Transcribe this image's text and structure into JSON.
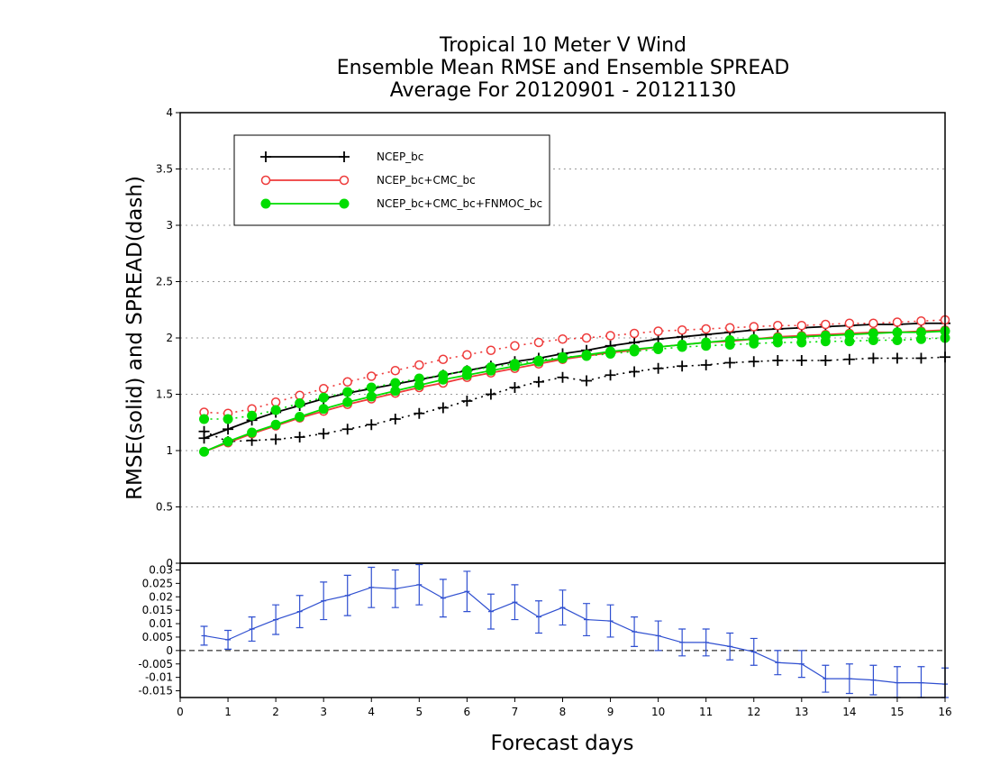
{
  "title": {
    "line1": "Tropical 10 Meter V Wind",
    "line2": "Ensemble Mean RMSE and Ensemble SPREAD",
    "line3": "Average For 20120901 - 20121130"
  },
  "chart_data": [
    {
      "type": "line",
      "panel": "top",
      "ylabel": "RMSE(solid) and SPREAD(dash)",
      "ylim": [
        0,
        4
      ],
      "yticks": [
        "0",
        "0.5",
        "1",
        "1.5",
        "2",
        "2.5",
        "3",
        "3.5",
        "4"
      ],
      "xlim": [
        0,
        16
      ],
      "grid": "horizontal dotted",
      "legend_position": "top-left",
      "x": [
        0.5,
        1,
        1.5,
        2,
        2.5,
        3,
        3.5,
        4,
        4.5,
        5,
        5.5,
        6,
        6.5,
        7,
        7.5,
        8,
        8.5,
        9,
        9.5,
        10,
        10.5,
        11,
        11.5,
        12,
        12.5,
        13,
        13.5,
        14,
        14.5,
        15,
        15.5,
        16
      ],
      "series": [
        {
          "name": "NCEP_bc",
          "color": "#000000",
          "marker": "plus",
          "rmse": [
            1.11,
            1.19,
            1.27,
            1.34,
            1.4,
            1.46,
            1.51,
            1.55,
            1.59,
            1.63,
            1.67,
            1.71,
            1.75,
            1.79,
            1.82,
            1.86,
            1.89,
            1.93,
            1.96,
            1.99,
            2.01,
            2.03,
            2.05,
            2.07,
            2.08,
            2.09,
            2.1,
            2.11,
            2.12,
            2.12,
            2.13,
            2.13
          ],
          "spread": [
            1.17,
            1.08,
            1.09,
            1.1,
            1.12,
            1.15,
            1.19,
            1.23,
            1.28,
            1.33,
            1.38,
            1.44,
            1.5,
            1.56,
            1.61,
            1.65,
            1.62,
            1.67,
            1.7,
            1.73,
            1.75,
            1.76,
            1.78,
            1.79,
            1.8,
            1.8,
            1.8,
            1.81,
            1.82,
            1.82,
            1.82,
            1.83
          ]
        },
        {
          "name": "NCEP_bc+CMC_bc",
          "color": "#ee3a3a",
          "marker": "open-circle",
          "rmse": [
            0.99,
            1.07,
            1.15,
            1.22,
            1.29,
            1.35,
            1.41,
            1.46,
            1.51,
            1.56,
            1.6,
            1.65,
            1.69,
            1.73,
            1.77,
            1.81,
            1.84,
            1.87,
            1.89,
            1.92,
            1.94,
            1.96,
            1.97,
            1.99,
            2.01,
            2.02,
            2.03,
            2.04,
            2.05,
            2.05,
            2.06,
            2.07
          ],
          "spread": [
            1.34,
            1.33,
            1.37,
            1.43,
            1.49,
            1.55,
            1.61,
            1.66,
            1.71,
            1.76,
            1.81,
            1.85,
            1.89,
            1.93,
            1.96,
            1.99,
            2.0,
            2.02,
            2.04,
            2.06,
            2.07,
            2.08,
            2.09,
            2.1,
            2.11,
            2.11,
            2.12,
            2.13,
            2.13,
            2.14,
            2.15,
            2.16
          ]
        },
        {
          "name": "NCEP_bc+CMC_bc+FNMOC_bc",
          "color": "#00dd00",
          "marker": "filled-circle",
          "rmse": [
            0.99,
            1.08,
            1.16,
            1.23,
            1.3,
            1.37,
            1.43,
            1.48,
            1.53,
            1.58,
            1.63,
            1.67,
            1.71,
            1.75,
            1.79,
            1.82,
            1.85,
            1.88,
            1.9,
            1.92,
            1.94,
            1.96,
            1.98,
            1.99,
            2.0,
            2.01,
            2.02,
            2.03,
            2.04,
            2.05,
            2.05,
            2.06
          ],
          "spread": [
            1.28,
            1.28,
            1.31,
            1.36,
            1.42,
            1.47,
            1.52,
            1.56,
            1.6,
            1.64,
            1.67,
            1.71,
            1.74,
            1.77,
            1.8,
            1.83,
            1.84,
            1.86,
            1.88,
            1.9,
            1.92,
            1.93,
            1.94,
            1.95,
            1.96,
            1.96,
            1.97,
            1.97,
            1.98,
            1.98,
            1.99,
            2.0
          ]
        }
      ]
    },
    {
      "type": "line",
      "panel": "bottom",
      "xlabel": "Forecast days",
      "ylim": [
        -0.0175,
        0.0325
      ],
      "yticks": [
        "-0.015",
        "-0.01",
        "-0.005",
        "0",
        "0.005",
        "0.01",
        "0.015",
        "0.02",
        "0.025",
        "0.03"
      ],
      "xticks": [
        "0",
        "1",
        "2",
        "3",
        "4",
        "5",
        "6",
        "7",
        "8",
        "9",
        "10",
        "11",
        "12",
        "13",
        "14",
        "15",
        "16"
      ],
      "xlim": [
        0,
        16
      ],
      "zero_line": "dashed",
      "series": [
        {
          "color": "#2f4fd0",
          "error_bars": true,
          "x": [
            0.5,
            1,
            1.5,
            2,
            2.5,
            3,
            3.5,
            4,
            4.5,
            5,
            5.5,
            6,
            6.5,
            7,
            7.5,
            8,
            8.5,
            9,
            9.5,
            10,
            10.5,
            11,
            11.5,
            12,
            12.5,
            13,
            13.5,
            14,
            14.5,
            15,
            15.5,
            16
          ],
          "values": [
            0.0055,
            0.004,
            0.008,
            0.0115,
            0.0145,
            0.0185,
            0.0205,
            0.0235,
            0.023,
            0.0245,
            0.0195,
            0.022,
            0.0145,
            0.018,
            0.0125,
            0.016,
            0.0115,
            0.011,
            0.007,
            0.0055,
            0.003,
            0.003,
            0.0015,
            -0.0005,
            -0.0045,
            -0.005,
            -0.0105,
            -0.0105,
            -0.011,
            -0.012,
            -0.012,
            -0.0125
          ],
          "error": [
            0.0035,
            0.0035,
            0.0045,
            0.0055,
            0.006,
            0.007,
            0.0075,
            0.0075,
            0.007,
            0.0075,
            0.007,
            0.0075,
            0.0065,
            0.0065,
            0.006,
            0.0065,
            0.006,
            0.006,
            0.0055,
            0.0055,
            0.005,
            0.005,
            0.005,
            0.005,
            0.0045,
            0.005,
            0.005,
            0.0055,
            0.0055,
            0.006,
            0.006,
            0.006
          ]
        }
      ]
    }
  ]
}
